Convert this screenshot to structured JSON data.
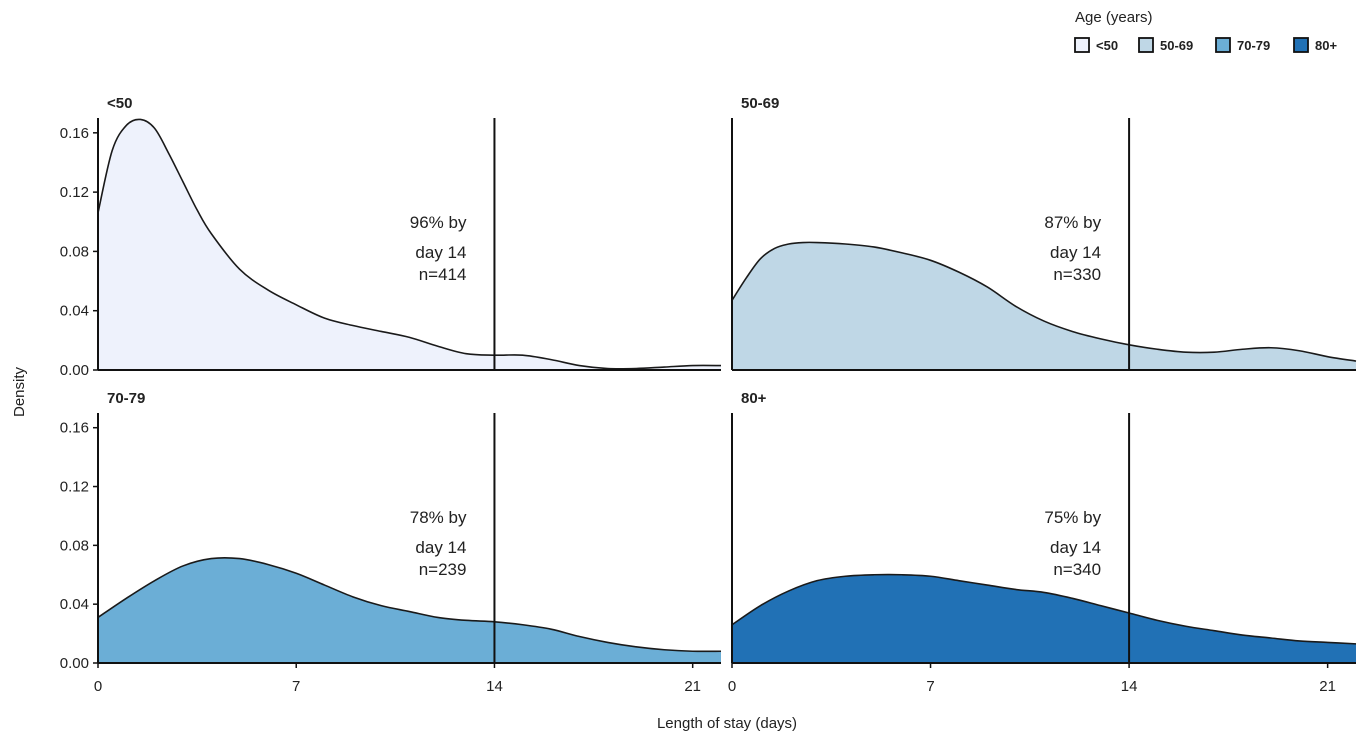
{
  "chart_data": {
    "type": "area",
    "title": "",
    "xlabel": "Length of stay (days)",
    "ylabel": "Density",
    "xlim": [
      0,
      22
    ],
    "ylim": [
      0,
      0.17
    ],
    "x_ticks": [
      "0",
      "7",
      "14",
      "21"
    ],
    "y_ticks": [
      "0.00",
      "0.04",
      "0.08",
      "0.12",
      "0.16"
    ],
    "reference_line_x": 14,
    "legend": {
      "title": "Age (years)",
      "placement": "top-right",
      "entries": [
        "<50",
        "50-69",
        "70-79",
        "80+"
      ]
    },
    "grid": false,
    "panels": [
      {
        "name": "<50",
        "color": "#eef2fc",
        "annotation": [
          "96% by",
          "day 14",
          "n=414"
        ],
        "x": [
          0,
          0.5,
          1,
          1.5,
          2,
          2.5,
          3,
          3.5,
          4,
          5,
          6,
          7,
          8,
          9,
          10,
          11,
          12,
          13,
          14,
          15,
          16,
          17,
          18,
          19,
          20,
          21,
          22
        ],
        "y": [
          0.106,
          0.148,
          0.165,
          0.169,
          0.163,
          0.146,
          0.127,
          0.108,
          0.092,
          0.068,
          0.054,
          0.044,
          0.035,
          0.03,
          0.026,
          0.022,
          0.016,
          0.011,
          0.01,
          0.01,
          0.007,
          0.003,
          0.001,
          0.001,
          0.002,
          0.003,
          0.003
        ]
      },
      {
        "name": "50-69",
        "color": "#bfd7e6",
        "annotation": [
          "87% by",
          "day 14",
          "n=330"
        ],
        "x": [
          0,
          0.5,
          1,
          1.5,
          2,
          2.5,
          3,
          4,
          5,
          6,
          7,
          8,
          9,
          10,
          11,
          12,
          13,
          14,
          15,
          16,
          17,
          18,
          19,
          20,
          21,
          22
        ],
        "y": [
          0.047,
          0.062,
          0.075,
          0.082,
          0.085,
          0.086,
          0.086,
          0.085,
          0.083,
          0.079,
          0.074,
          0.066,
          0.056,
          0.043,
          0.033,
          0.026,
          0.021,
          0.017,
          0.014,
          0.012,
          0.012,
          0.014,
          0.015,
          0.013,
          0.009,
          0.006
        ]
      },
      {
        "name": "70-79",
        "color": "#6baed6",
        "annotation": [
          "78% by",
          "day 14",
          "n=239"
        ],
        "x": [
          0,
          1,
          2,
          3,
          4,
          5,
          6,
          7,
          8,
          9,
          10,
          11,
          12,
          13,
          14,
          15,
          16,
          17,
          18,
          19,
          20,
          21,
          22
        ],
        "y": [
          0.031,
          0.044,
          0.056,
          0.066,
          0.071,
          0.071,
          0.067,
          0.061,
          0.053,
          0.045,
          0.039,
          0.035,
          0.031,
          0.029,
          0.028,
          0.026,
          0.023,
          0.018,
          0.014,
          0.011,
          0.009,
          0.008,
          0.008
        ]
      },
      {
        "name": "80+",
        "color": "#2171b5",
        "annotation": [
          "75% by",
          "day 14",
          "n=340"
        ],
        "x": [
          0,
          1,
          2,
          3,
          4,
          5,
          6,
          7,
          8,
          9,
          10,
          11,
          12,
          13,
          14,
          15,
          16,
          17,
          18,
          19,
          20,
          21,
          22
        ],
        "y": [
          0.026,
          0.039,
          0.049,
          0.056,
          0.059,
          0.06,
          0.06,
          0.059,
          0.056,
          0.053,
          0.05,
          0.048,
          0.044,
          0.039,
          0.034,
          0.029,
          0.025,
          0.022,
          0.019,
          0.017,
          0.015,
          0.014,
          0.013
        ]
      }
    ]
  }
}
